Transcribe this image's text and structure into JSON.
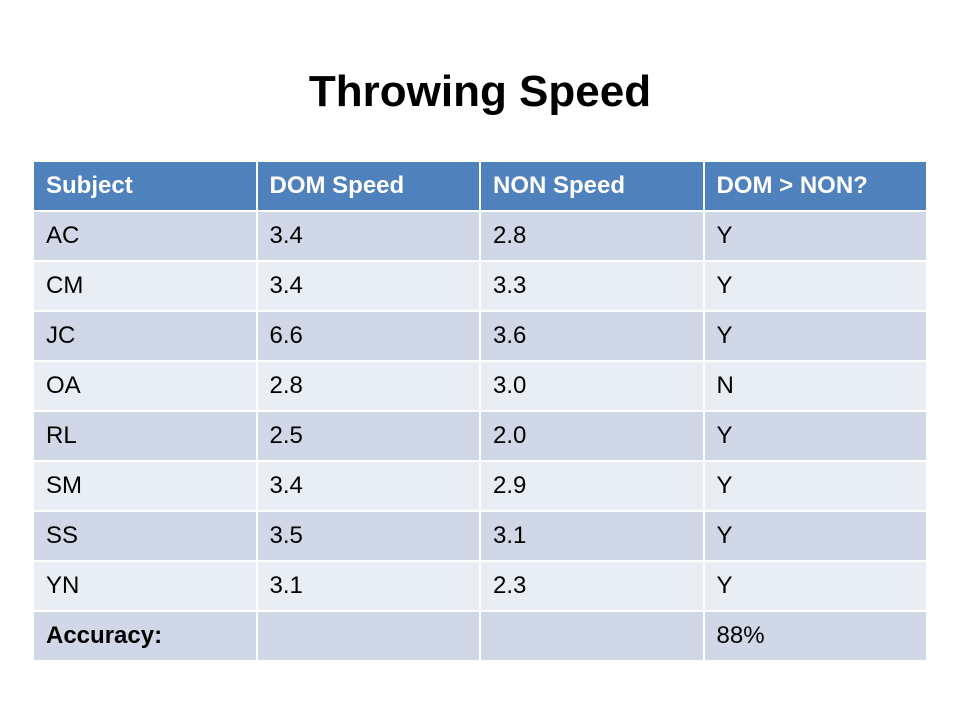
{
  "title": "Throwing Speed",
  "table": {
    "headers": [
      "Subject",
      "DOM Speed",
      "NON Speed",
      "DOM > NON?"
    ],
    "rows": [
      [
        "AC",
        "3.4",
        "2.8",
        "Y"
      ],
      [
        "CM",
        "3.4",
        "3.3",
        "Y"
      ],
      [
        "JC",
        "6.6",
        "3.6",
        "Y"
      ],
      [
        "OA",
        "2.8",
        "3.0",
        "N"
      ],
      [
        "RL",
        "2.5",
        "2.0",
        "Y"
      ],
      [
        "SM",
        "3.4",
        "2.9",
        "Y"
      ],
      [
        "SS",
        "3.5",
        "3.1",
        "Y"
      ],
      [
        "YN",
        "3.1",
        "2.3",
        "Y"
      ]
    ],
    "summary": [
      "Accuracy:",
      "",
      "",
      "88%"
    ]
  },
  "colors": {
    "header_bg": "#4f81bd",
    "row_dark": "#d0d8e8",
    "row_light": "#e9edf4"
  }
}
